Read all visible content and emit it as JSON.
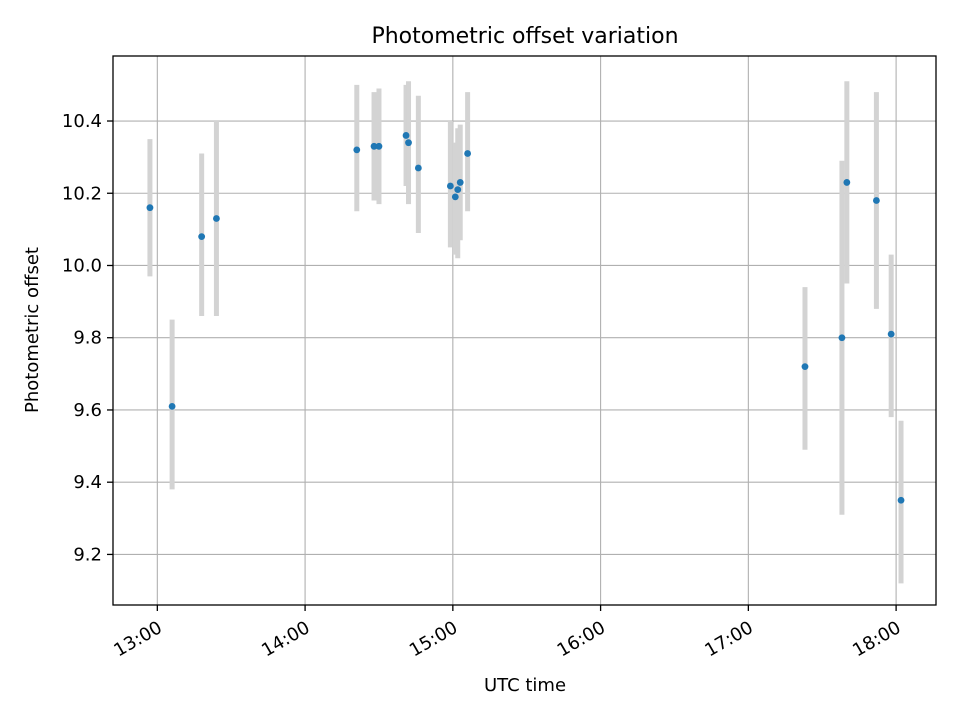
{
  "chart_data": {
    "type": "scatter",
    "title": "Photometric offset variation",
    "xlabel": "UTC time",
    "ylabel": "Photometric offset",
    "x_unit": "hours (UTC)",
    "xlim": [
      12.7,
      18.27
    ],
    "ylim": [
      9.06,
      10.58
    ],
    "x_ticks": [
      {
        "value": 13,
        "label": "13:00"
      },
      {
        "value": 14,
        "label": "14:00"
      },
      {
        "value": 15,
        "label": "15:00"
      },
      {
        "value": 16,
        "label": "16:00"
      },
      {
        "value": 17,
        "label": "17:00"
      },
      {
        "value": 18,
        "label": "18:00"
      }
    ],
    "y_ticks": [
      {
        "value": 9.2,
        "label": "9.2"
      },
      {
        "value": 9.4,
        "label": "9.4"
      },
      {
        "value": 9.6,
        "label": "9.6"
      },
      {
        "value": 9.8,
        "label": "9.8"
      },
      {
        "value": 10.0,
        "label": "10.0"
      },
      {
        "value": 10.2,
        "label": "10.2"
      },
      {
        "value": 10.4,
        "label": "10.4"
      }
    ],
    "grid": true,
    "colors": {
      "points": "#1f77b4",
      "error_bars": "#d3d3d3"
    },
    "points": [
      {
        "x": "12:57",
        "y": 10.16,
        "err_low": 9.97,
        "err_high": 10.35
      },
      {
        "x": "13:06",
        "y": 9.61,
        "err_low": 9.38,
        "err_high": 9.85
      },
      {
        "x": "13:18",
        "y": 10.08,
        "err_low": 9.86,
        "err_high": 10.31
      },
      {
        "x": "13:24",
        "y": 10.13,
        "err_low": 9.86,
        "err_high": 10.4
      },
      {
        "x": "14:21",
        "y": 10.32,
        "err_low": 10.15,
        "err_high": 10.5
      },
      {
        "x": "14:28",
        "y": 10.33,
        "err_low": 10.18,
        "err_high": 10.48
      },
      {
        "x": "14:30",
        "y": 10.33,
        "err_low": 10.17,
        "err_high": 10.49
      },
      {
        "x": "14:41",
        "y": 10.36,
        "err_low": 10.22,
        "err_high": 10.5
      },
      {
        "x": "14:42",
        "y": 10.34,
        "err_low": 10.17,
        "err_high": 10.51
      },
      {
        "x": "14:46",
        "y": 10.27,
        "err_low": 10.09,
        "err_high": 10.47
      },
      {
        "x": "14:59",
        "y": 10.22,
        "err_low": 10.05,
        "err_high": 10.4
      },
      {
        "x": "15:01",
        "y": 10.19,
        "err_low": 10.03,
        "err_high": 10.34
      },
      {
        "x": "15:02",
        "y": 10.21,
        "err_low": 10.02,
        "err_high": 10.38
      },
      {
        "x": "15:03",
        "y": 10.23,
        "err_low": 10.07,
        "err_high": 10.39
      },
      {
        "x": "15:06",
        "y": 10.31,
        "err_low": 10.15,
        "err_high": 10.48
      },
      {
        "x": "17:23",
        "y": 9.72,
        "err_low": 9.49,
        "err_high": 9.94
      },
      {
        "x": "17:38",
        "y": 9.8,
        "err_low": 9.31,
        "err_high": 10.29
      },
      {
        "x": "17:40",
        "y": 10.23,
        "err_low": 9.95,
        "err_high": 10.51
      },
      {
        "x": "17:52",
        "y": 10.18,
        "err_low": 9.88,
        "err_high": 10.48
      },
      {
        "x": "17:58",
        "y": 9.81,
        "err_low": 9.58,
        "err_high": 10.03
      },
      {
        "x": "18:02",
        "y": 9.35,
        "err_low": 9.12,
        "err_high": 9.57
      }
    ]
  }
}
